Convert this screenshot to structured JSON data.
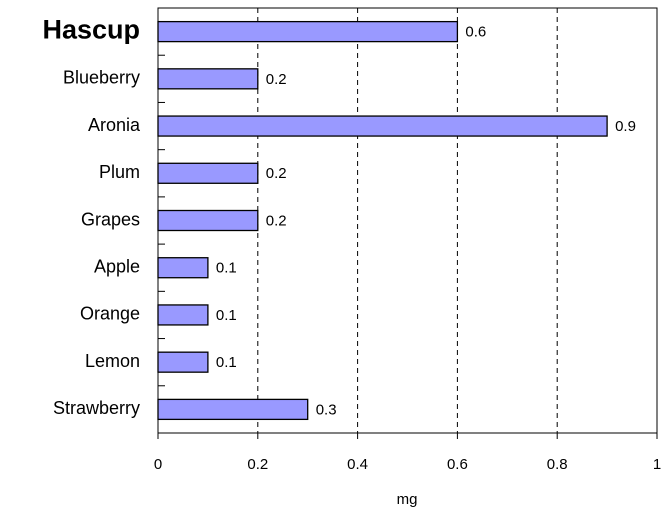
{
  "chart_data": {
    "type": "bar",
    "orientation": "horizontal",
    "categories": [
      "Hascup",
      "Blueberry",
      "Aronia",
      "Plum",
      "Grapes",
      "Apple",
      "Orange",
      "Lemon",
      "Strawberry"
    ],
    "values": [
      0.6,
      0.2,
      0.9,
      0.2,
      0.2,
      0.1,
      0.1,
      0.1,
      0.3
    ],
    "color": "#9999ff",
    "x_label": "mg",
    "xlim": [
      0,
      1
    ],
    "xticks": [
      0,
      0.2,
      0.4,
      0.6,
      0.8,
      1
    ],
    "grid": true
  }
}
